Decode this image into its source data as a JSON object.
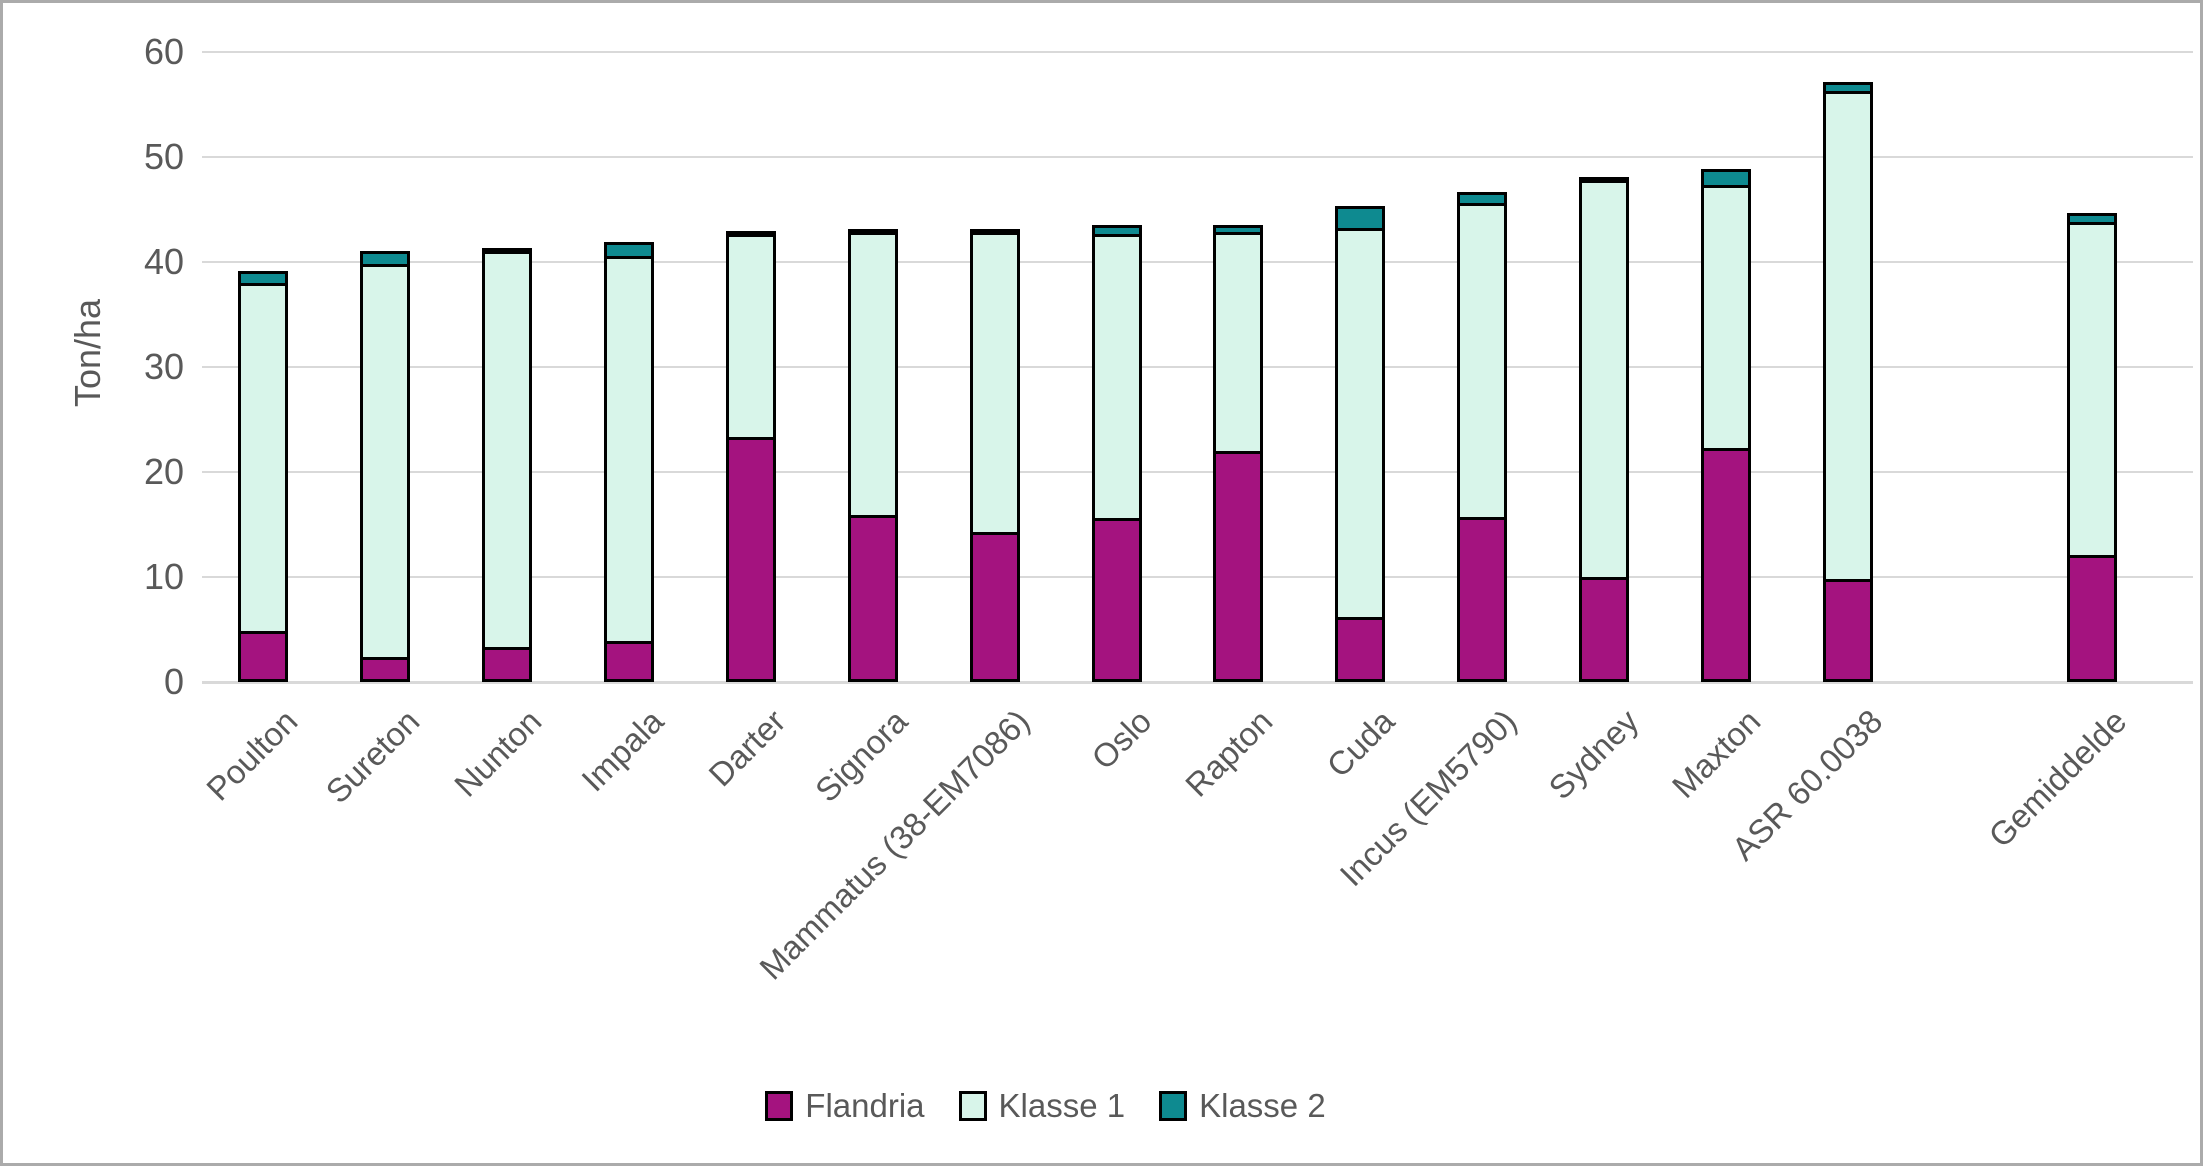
{
  "chart_data": {
    "type": "bar",
    "stacked": true,
    "title": "",
    "ylabel": "Ton/ha",
    "xlabel": "",
    "ylim": [
      0,
      60
    ],
    "yticks": [
      0,
      10,
      20,
      30,
      40,
      50,
      60
    ],
    "grid": "horizontal",
    "legend_position": "bottom",
    "gap_before_last_category": true,
    "categories": [
      "Poulton",
      "Sureton",
      "Nunton",
      "Impala",
      "Darter",
      "Signora",
      "Mammatus (38-EM7086)",
      "Oslo",
      "Rapton",
      "Cuda",
      "Incus (EM5790)",
      "Sydney",
      "Maxton",
      "ASR 60.0038",
      "Gemiddelde"
    ],
    "series": [
      {
        "name": "Flandria",
        "color": "#A4137F",
        "values": [
          4.9,
          2.4,
          3.3,
          3.9,
          23.3,
          15.9,
          14.3,
          15.6,
          22.0,
          6.2,
          15.7,
          10.0,
          22.3,
          9.8,
          12.1
        ]
      },
      {
        "name": "Klasse 1",
        "color": "#D8F5EA",
        "values": [
          33.1,
          37.4,
          37.8,
          36.7,
          19.4,
          27.0,
          28.7,
          27.0,
          20.9,
          37.0,
          29.9,
          37.9,
          25.0,
          46.5,
          31.7
        ]
      },
      {
        "name": "Klasse 2",
        "color": "#0E8A90",
        "values": [
          1.1,
          1.2,
          0.2,
          1.3,
          0.2,
          0.2,
          0.2,
          0.9,
          0.7,
          2.1,
          1.0,
          0.2,
          1.5,
          0.9,
          0.9
        ]
      }
    ],
    "totals": [
      39.1,
      41.0,
      41.3,
      41.9,
      42.9,
      43.1,
      43.2,
      43.5,
      43.6,
      45.3,
      46.6,
      48.1,
      48.8,
      57.2,
      44.7
    ]
  },
  "colors": {
    "background": "#FFFFFF",
    "frame_border": "#ABABAB",
    "gridline": "#D9D9D9",
    "axis_text": "#595959",
    "bar_outline": "#000000"
  }
}
